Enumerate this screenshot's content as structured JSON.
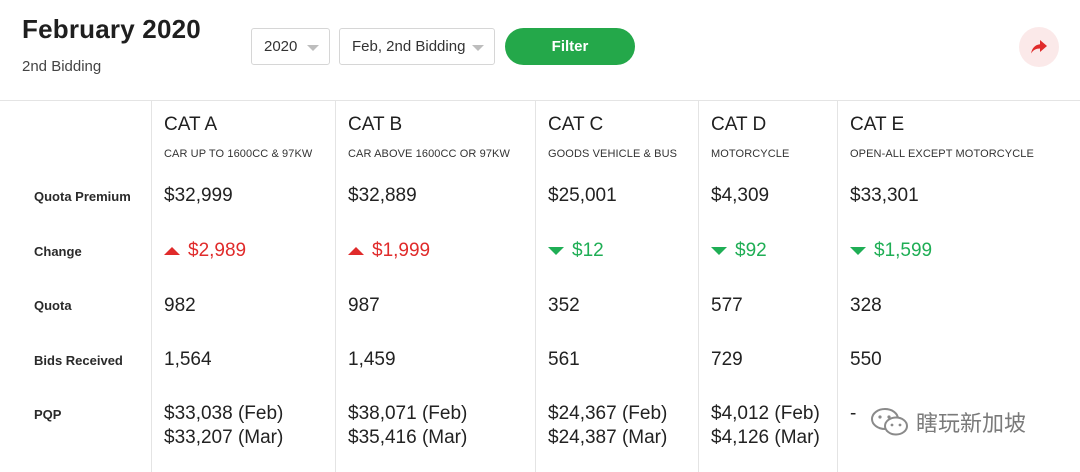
{
  "header": {
    "title": "February 2020",
    "subtitle": "2nd Bidding",
    "year_select": "2020",
    "round_select": "Feb, 2nd Bidding",
    "filter_label": "Filter"
  },
  "row_labels": [
    "Quota Premium",
    "Change",
    "Quota",
    "Bids Received",
    "PQP"
  ],
  "categories": [
    {
      "title": "CAT A",
      "desc": "CAR UP TO 1600CC & 97KW",
      "premium": "$32,999",
      "change": "$2,989",
      "direction": "up",
      "quota": "982",
      "bids": "1,564",
      "pqp1": "$33,038 (Feb)",
      "pqp2": "$33,207 (Mar)"
    },
    {
      "title": "CAT B",
      "desc": "CAR ABOVE 1600CC OR 97KW",
      "premium": "$32,889",
      "change": "$1,999",
      "direction": "up",
      "quota": "987",
      "bids": "1,459",
      "pqp1": "$38,071 (Feb)",
      "pqp2": "$35,416 (Mar)"
    },
    {
      "title": "CAT C",
      "desc": "GOODS VEHICLE & BUS",
      "premium": "$25,001",
      "change": "$12",
      "direction": "down",
      "quota": "352",
      "bids": "561",
      "pqp1": "$24,367 (Feb)",
      "pqp2": "$24,387 (Mar)"
    },
    {
      "title": "CAT D",
      "desc": "MOTORCYCLE",
      "premium": "$4,309",
      "change": "$92",
      "direction": "down",
      "quota": "577",
      "bids": "729",
      "pqp1": "$4,012 (Feb)",
      "pqp2": "$4,126 (Mar)"
    },
    {
      "title": "CAT E",
      "desc": "OPEN-ALL EXCEPT MOTORCYCLE",
      "premium": "$33,301",
      "change": "$1,599",
      "direction": "down",
      "quota": "328",
      "bids": "550",
      "pqp1": "-",
      "pqp2": ""
    }
  ],
  "watermark": "瞎玩新加坡",
  "colors": {
    "accent_green": "#24a84a",
    "up_red": "#e02b2b",
    "down_green": "#1fae55",
    "share_bg": "#fbe9e9"
  },
  "icons": {
    "share": "share-arrow-icon",
    "caret": "chevron-down-icon",
    "watermark": "wechat-icon"
  }
}
